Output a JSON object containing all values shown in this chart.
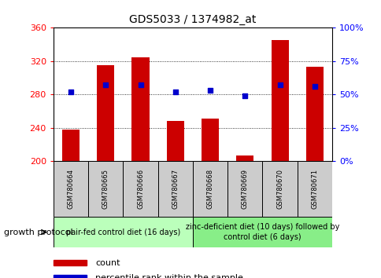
{
  "title": "GDS5033 / 1374982_at",
  "samples": [
    "GSM780664",
    "GSM780665",
    "GSM780666",
    "GSM780667",
    "GSM780668",
    "GSM780669",
    "GSM780670",
    "GSM780671"
  ],
  "count_values": [
    238,
    315,
    325,
    248,
    251,
    207,
    345,
    313
  ],
  "percentile_values": [
    52,
    57,
    57,
    52,
    53,
    49,
    57,
    56
  ],
  "ylim_left": [
    200,
    360
  ],
  "ylim_right": [
    0,
    100
  ],
  "yticks_left": [
    200,
    240,
    280,
    320,
    360
  ],
  "yticks_right": [
    0,
    25,
    50,
    75,
    100
  ],
  "ytick_labels_right": [
    "0%",
    "25%",
    "50%",
    "75%",
    "100%"
  ],
  "bar_color": "#cc0000",
  "dot_color": "#0000cc",
  "bar_bottom": 200,
  "group1_label": "pair-fed control diet (16 days)",
  "group2_label": "zinc-deficient diet (10 days) followed by\ncontrol diet (6 days)",
  "group_protocol_label": "growth protocol",
  "group1_indices": [
    0,
    1,
    2,
    3
  ],
  "group2_indices": [
    4,
    5,
    6,
    7
  ],
  "group1_color": "#bbffbb",
  "group2_color": "#88ee88",
  "tick_label_area_color": "#cccccc",
  "legend_count_label": "count",
  "legend_percentile_label": "percentile rank within the sample",
  "title_fontsize": 10,
  "tick_fontsize": 8,
  "legend_fontsize": 8,
  "sample_fontsize": 6,
  "group_fontsize": 7,
  "protocol_fontsize": 8
}
